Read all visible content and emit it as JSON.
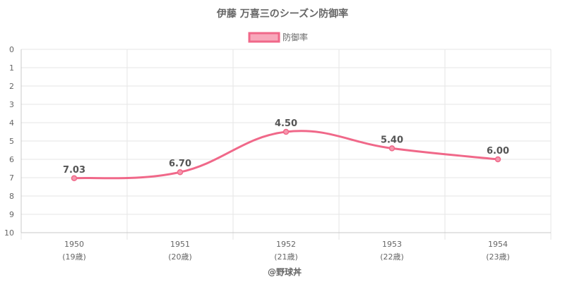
{
  "title": "伊藤 万喜三のシーズン防御率",
  "credit": "@野球丼",
  "colors": {
    "line": "#f06889",
    "point_fill": "#f597ad",
    "legend_fill": "#f8a8bb",
    "grid": "#e5e5e5",
    "axis": "#c8c8c8",
    "text": "#666666"
  },
  "chart_data": {
    "type": "line",
    "categories": [
      "1950",
      "1951",
      "1952",
      "1953",
      "1954"
    ],
    "sublabels": [
      "(19歳)",
      "(20歳)",
      "(21歳)",
      "(22歳)",
      "(23歳)"
    ],
    "series": [
      {
        "name": "防御率",
        "values": [
          7.03,
          6.7,
          4.5,
          5.4,
          6.0
        ],
        "labels": [
          "7.03",
          "6.70",
          "4.50",
          "5.40",
          "6.00"
        ]
      }
    ],
    "y_ticks": [
      "0",
      "1",
      "2",
      "3",
      "4",
      "5",
      "6",
      "7",
      "8",
      "9",
      "10"
    ],
    "ylim": [
      0,
      10
    ],
    "y_reversed": true,
    "grid": true,
    "legend_position": "top"
  }
}
